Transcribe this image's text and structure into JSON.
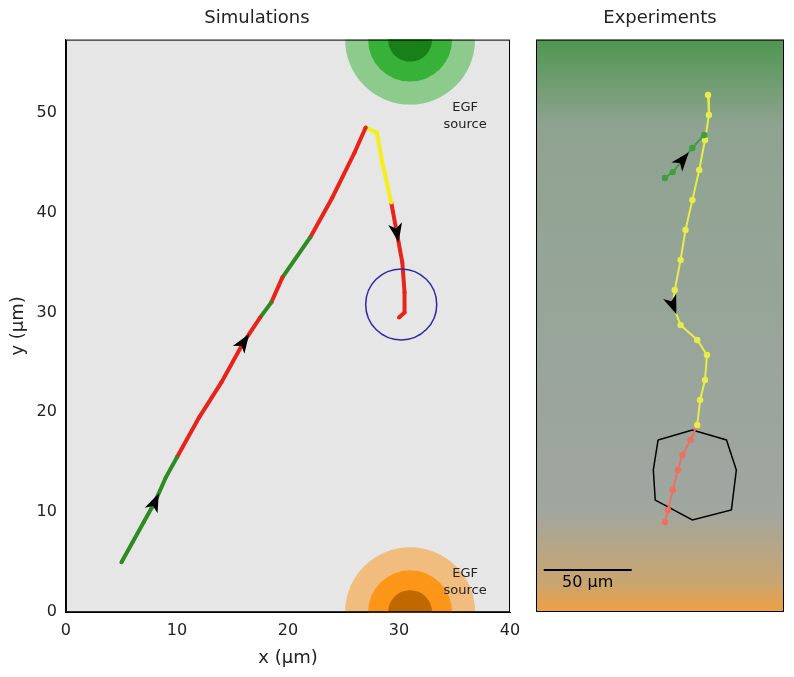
{
  "chart_data": [
    {
      "type": "line",
      "title": "Simulations",
      "x_label": "x (μm)",
      "y_label": "y (μm)",
      "xlim": [
        0,
        40
      ],
      "xticks": [
        0,
        10,
        20,
        30,
        40
      ],
      "ylim": [
        0,
        57.3
      ],
      "yticks": [
        0,
        10,
        20,
        30,
        40,
        50
      ],
      "grid": false,
      "marker": "circle",
      "line_style": "solid",
      "series": [
        {
          "color": "#2e8b22",
          "x": [
            5,
            6,
            7,
            8,
            9,
            10
          ],
          "values": [
            5,
            7,
            9,
            11,
            13.5,
            15.5
          ]
        },
        {
          "color": "#e8231a",
          "x": [
            10,
            12,
            14,
            16,
            17.5
          ],
          "values": [
            15.5,
            19.5,
            23,
            27,
            29.5
          ]
        },
        {
          "color": "#2e8b22",
          "x": [
            17.5,
            18.5
          ],
          "values": [
            29.5,
            31
          ]
        },
        {
          "color": "#e8231a",
          "x": [
            18.5,
            19.5
          ],
          "values": [
            31,
            33.5
          ]
        },
        {
          "color": "#2e8b22",
          "x": [
            19.5,
            22
          ],
          "values": [
            33.5,
            37.5
          ]
        },
        {
          "color": "#e8231a",
          "x": [
            22,
            24,
            26,
            27
          ],
          "values": [
            37.5,
            41.5,
            46,
            48.5
          ]
        },
        {
          "color": "#f2ef1a",
          "x": [
            27,
            28,
            28.5,
            29.3
          ],
          "values": [
            48.5,
            48,
            45,
            41
          ]
        },
        {
          "color": "#e8231a",
          "x": [
            29.3,
            29.8,
            30.3,
            30.5,
            30.5,
            30
          ],
          "values": [
            41,
            38,
            35,
            32,
            30,
            29.5
          ]
        }
      ],
      "arrows": [
        {
          "x": 8,
          "y": 11
        },
        {
          "x": 16,
          "y": 27
        },
        {
          "x": 29.8,
          "y": 38
        }
      ],
      "cell": {
        "x": 30.2,
        "y": 30.8,
        "radius": 3.2,
        "color": "#2b2ba8"
      },
      "sources": [
        {
          "label": "EGF source",
          "x": 31,
          "y": 57.3,
          "color": "#22aa22"
        },
        {
          "label": "EGF source",
          "x": 31,
          "y": 0,
          "color": "#ff8c00"
        }
      ]
    },
    {
      "type": "line",
      "title": "Experiments",
      "xlim": [
        0,
        141
      ],
      "ylim": [
        0,
        318
      ],
      "tick_labels": false,
      "grid": false,
      "marker": "circle",
      "line_style": "solid",
      "series": [
        {
          "color": "#3f9f3f",
          "x": [
            73.3,
            77.8,
            83.3,
            88.9,
            95.6
          ],
          "values": [
            241.1,
            244.4,
            251.1,
            257.8,
            265
          ]
        },
        {
          "color": "#e6ec4a",
          "x": [
            97.8,
            98.3,
            96.1,
            92.8,
            88.9,
            85.0,
            82.2,
            78.9,
            77.8,
            82.2,
            91.7,
            97.2,
            96.1,
            93.3,
            91.7
          ],
          "values": [
            287.2,
            276.1,
            262.2,
            245.6,
            228.9,
            212.2,
            195.6,
            178.9,
            170.6,
            159.4,
            151.1,
            142.8,
            128.9,
            117.8,
            103.9
          ]
        },
        {
          "color": "#f07060",
          "x": [
            91.7,
            87.8,
            83.3,
            80.6,
            77.8,
            75.0,
            73.3
          ],
          "values": [
            103.9,
            95.6,
            87.2,
            78.9,
            67.8,
            56.7,
            50.0
          ]
        },
        {
          "color": "#000000",
          "marker": "none",
          "x": [
            69.4,
            88.9,
            108.3,
            113.9,
            111.1,
            88.9,
            67.8,
            66.7,
            69.4
          ],
          "values": [
            95.6,
            101.1,
            95.6,
            78.9,
            56.7,
            51.1,
            62.2,
            78.9,
            95.6
          ]
        }
      ],
      "arrows": [
        {
          "x": 83.3,
          "y": 251.1
        },
        {
          "x": 77.8,
          "y": 170.6
        }
      ],
      "scale_bar": {
        "length": 50,
        "label": "50 μm",
        "x": 4.4,
        "y": 23.3
      }
    }
  ]
}
